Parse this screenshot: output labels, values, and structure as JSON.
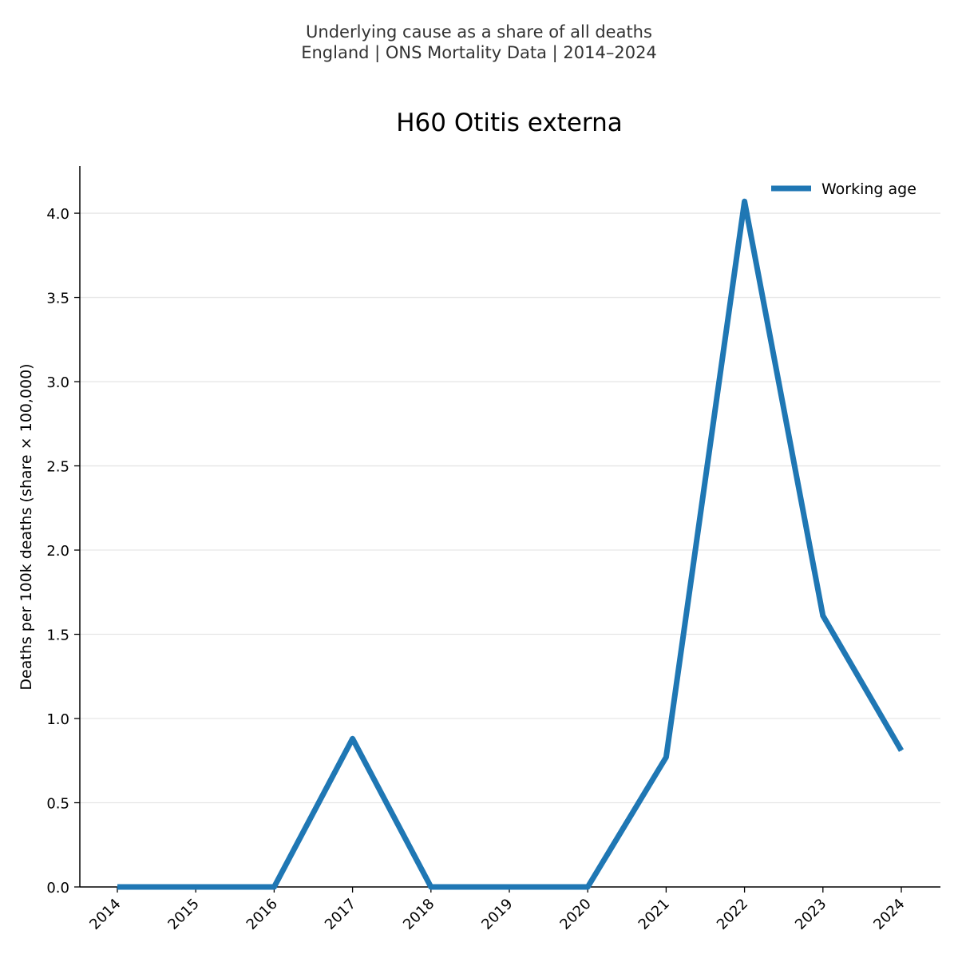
{
  "header": {
    "subtitle_line1": "Underlying cause as a share of all deaths",
    "subtitle_line2": "England | ONS Mortality Data | 2014–2024"
  },
  "colors": {
    "series": "#1f77b4",
    "grid": "#e6e6e6",
    "axis": "#000000",
    "suptitle": "#333333"
  },
  "chart_data": {
    "type": "line",
    "title": "H60 Otitis externa",
    "xlabel": "",
    "ylabel": "Deaths per 100k deaths (share × 100,000)",
    "x": [
      "2014",
      "2015",
      "2016",
      "2017",
      "2018",
      "2019",
      "2020",
      "2021",
      "2022",
      "2023",
      "2024"
    ],
    "series": [
      {
        "name": "Working age",
        "values": [
          0,
          0,
          0,
          0.88,
          0,
          0,
          0,
          0.77,
          4.07,
          1.61,
          0.81
        ]
      }
    ],
    "ylim": [
      0,
      4.28
    ],
    "yticks": [
      "0.0",
      "0.5",
      "1.0",
      "1.5",
      "2.0",
      "2.5",
      "3.0",
      "3.5",
      "4.0"
    ],
    "grid": "horizontal",
    "legend_position": "top-right"
  }
}
